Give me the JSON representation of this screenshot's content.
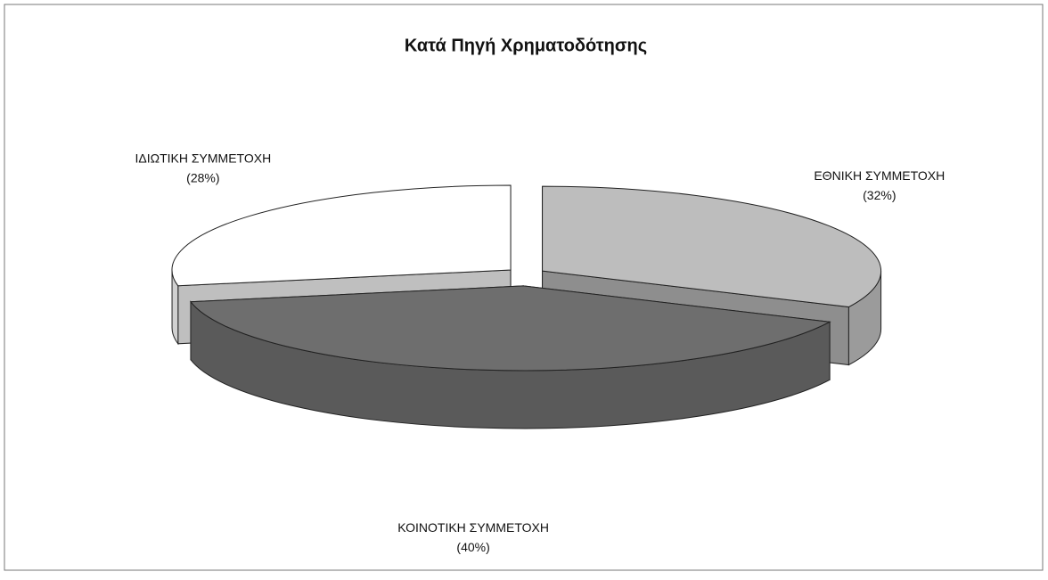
{
  "chart_data": {
    "type": "pie3d",
    "title": "Κατά Πηγή Χρηματοδότησης",
    "categories": [
      "ΕΘΝΙΚΗ ΣΥΜΜΕΤΟΧΗ",
      "ΚΟΙΝΟΤΙΚΗ ΣΥΜΜΕΤΟΧΗ",
      "ΙΔΙΩΤΙΚΗ ΣΥΜΜΕΤΟΧΗ"
    ],
    "values": [
      32,
      40,
      28
    ],
    "value_labels": [
      "(32%)",
      "(40%)",
      "(28%)"
    ],
    "colors": [
      "#bdbdbd",
      "#6e6e6e",
      "#ffffff"
    ]
  }
}
